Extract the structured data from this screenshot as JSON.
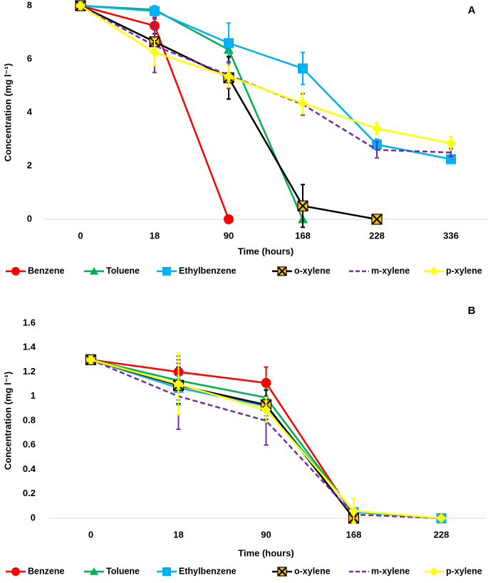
{
  "chart_data": [
    {
      "type": "line",
      "panel_label": "A",
      "x_label": "Time (hours)",
      "y_label": "Concentration (mg l⁻¹)",
      "categories": [
        "0",
        "18",
        "90",
        "168",
        "228",
        "336"
      ],
      "ylim": [
        0,
        8
      ],
      "yticks": [
        0,
        2,
        4,
        6,
        8
      ],
      "series": [
        {
          "name": "Benzene",
          "color": "#ff0000",
          "marker": "circle",
          "values": [
            8,
            7.25,
            0,
            null,
            null,
            null
          ],
          "errors": [
            null,
            0.3,
            null,
            null,
            null,
            null
          ]
        },
        {
          "name": "Toluene",
          "color": "#00b050",
          "marker": "triangle",
          "values": [
            8,
            7.85,
            6.35,
            0,
            null,
            null
          ],
          "errors": [
            null,
            0.1,
            0.3,
            null,
            null,
            null
          ]
        },
        {
          "name": "Ethylbenzene",
          "color": "#00b0f0",
          "marker": "square",
          "values": [
            8,
            7.8,
            6.6,
            5.65,
            2.8,
            2.25
          ],
          "errors": [
            null,
            0.2,
            0.75,
            0.6,
            0.2,
            0.15
          ]
        },
        {
          "name": "o-xylene",
          "color": "#000000",
          "marker": "xsquare",
          "marker_color": "#ffc000",
          "values": [
            8,
            6.65,
            5.3,
            0.5,
            0,
            null
          ],
          "errors": [
            null,
            0.3,
            0.8,
            0.8,
            null,
            null
          ]
        },
        {
          "name": "m-xylene",
          "color": "#7030a0",
          "marker": "none",
          "dash": true,
          "values": [
            8,
            6.5,
            5.4,
            4.3,
            2.6,
            2.5
          ],
          "errors": [
            null,
            1.0,
            0.5,
            0.4,
            0.3,
            0.15
          ]
        },
        {
          "name": "p-xylene",
          "color": "#ffff00",
          "marker": "diamond",
          "values": [
            8,
            6.25,
            5.35,
            4.35,
            3.4,
            2.85
          ],
          "errors": [
            null,
            0.5,
            0.4,
            0.4,
            0.2,
            0.25
          ]
        }
      ]
    },
    {
      "type": "line",
      "panel_label": "B",
      "x_label": "Time (hours)",
      "y_label": "Concentration (mg l⁻¹)",
      "categories": [
        "0",
        "18",
        "90",
        "168",
        "228"
      ],
      "ylim": [
        0,
        1.6
      ],
      "yticks": [
        0,
        0.2,
        0.4,
        0.6,
        0.8,
        1,
        1.2,
        1.4,
        1.6
      ],
      "series": [
        {
          "name": "Benzene",
          "color": "#ff0000",
          "marker": "circle",
          "values": [
            1.3,
            1.2,
            1.11,
            0.02,
            null
          ],
          "errors": [
            null,
            0.1,
            0.13,
            null,
            null
          ]
        },
        {
          "name": "Toluene",
          "color": "#00b050",
          "marker": "triangle",
          "values": [
            1.3,
            1.13,
            0.99,
            0.04,
            null
          ],
          "errors": [
            null,
            0.2,
            0.07,
            null,
            null
          ]
        },
        {
          "name": "Ethylbenzene",
          "color": "#00b0f0",
          "marker": "square",
          "values": [
            1.3,
            1.07,
            0.92,
            0.05,
            0
          ],
          "errors": [
            null,
            0.1,
            0.08,
            null,
            null
          ]
        },
        {
          "name": "o-xylene",
          "color": "#000000",
          "marker": "xsquare",
          "marker_color": "#ffc000",
          "values": [
            1.3,
            1.09,
            0.93,
            0,
            null
          ],
          "errors": [
            null,
            0.15,
            0.12,
            null,
            null
          ]
        },
        {
          "name": "m-xylene",
          "color": "#7030a0",
          "marker": "none",
          "dash": true,
          "values": [
            1.3,
            1.0,
            0.8,
            0.03,
            0
          ],
          "errors": [
            null,
            0.27,
            0.2,
            null,
            null
          ]
        },
        {
          "name": "p-xylene",
          "color": "#ffff00",
          "marker": "diamond",
          "values": [
            1.3,
            1.1,
            0.89,
            0.06,
            0
          ],
          "errors": [
            null,
            0.25,
            0.1,
            0.1,
            null
          ]
        }
      ]
    }
  ]
}
